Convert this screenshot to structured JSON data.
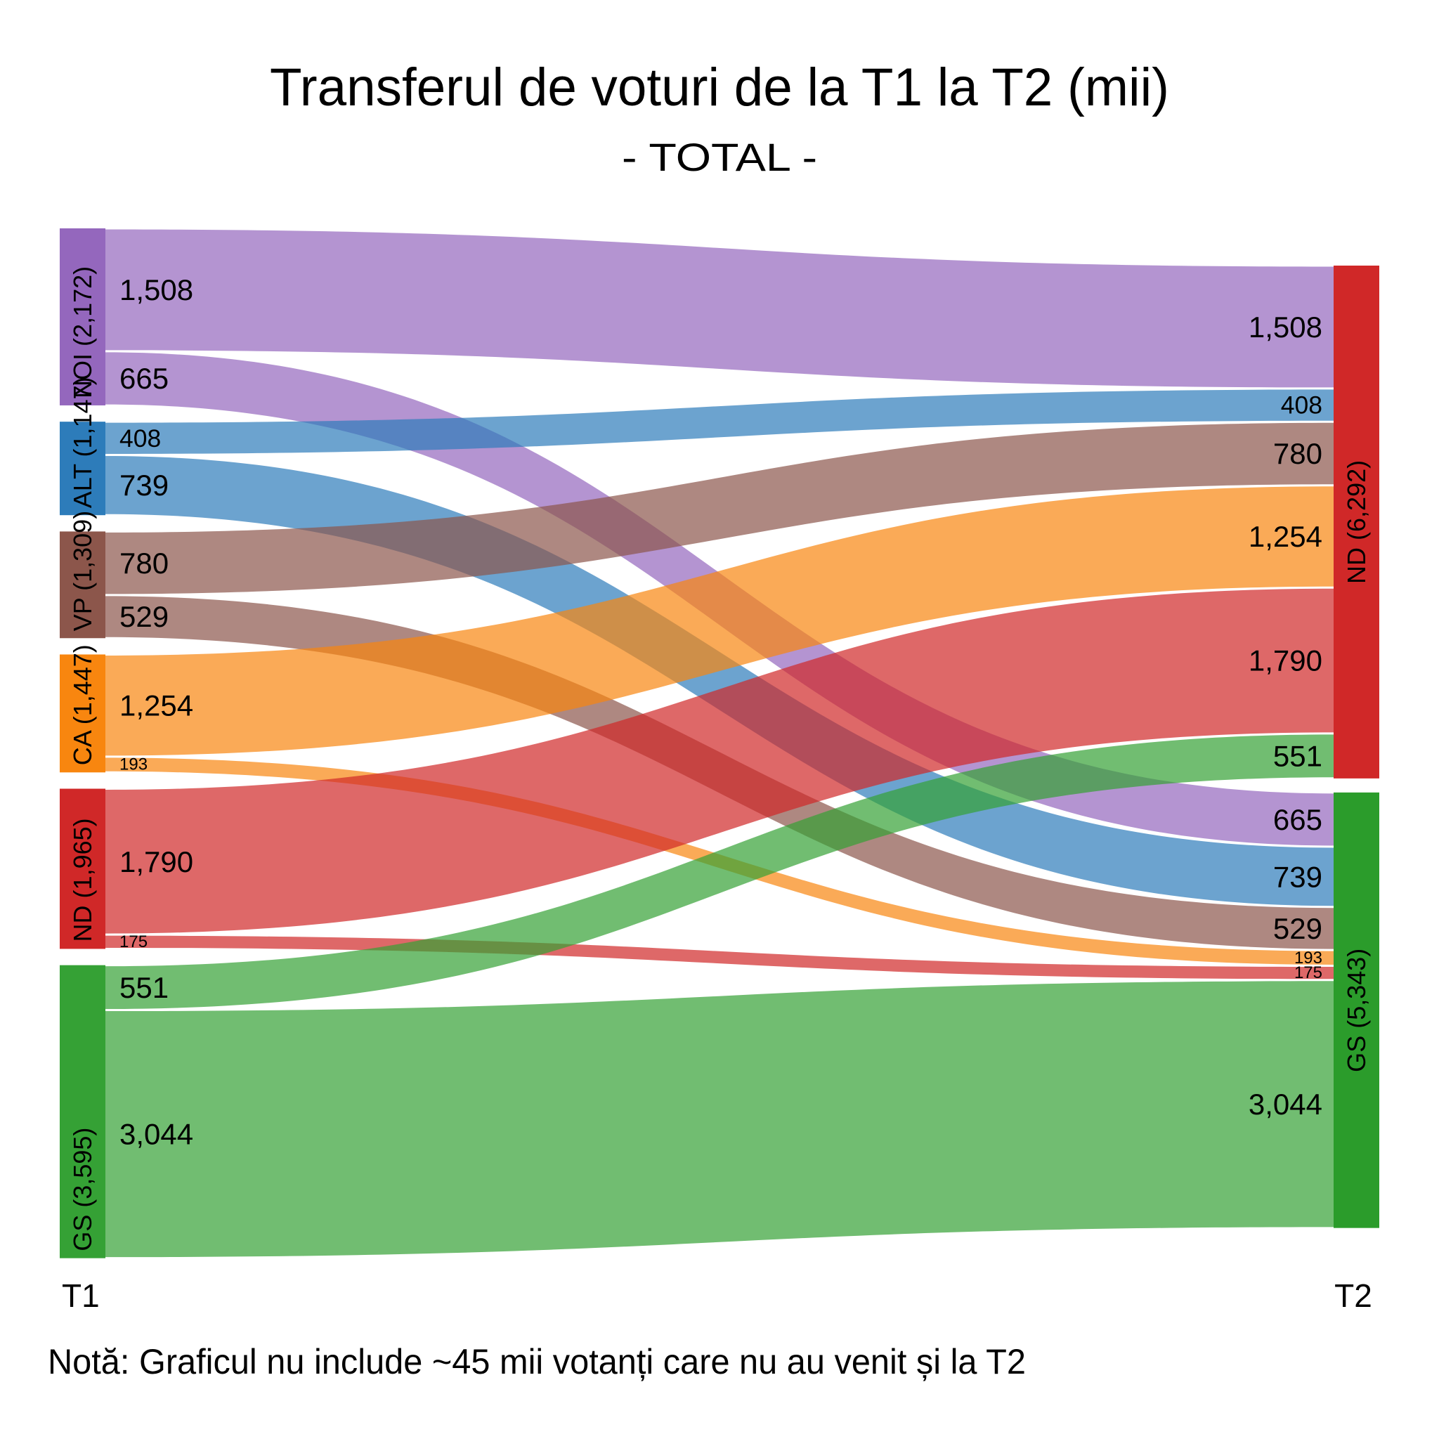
{
  "chart_data": {
    "type": "sankey",
    "title": "Transferul de voturi de la T1 la T2 (mii)",
    "subtitle": "- TOTAL -",
    "note": "Notă: Graficul nu include ~45 mii votanți care nu au venit și la T2",
    "axis": {
      "t1": "T1",
      "t2": "T2"
    },
    "unit": "mii",
    "left_nodes": [
      {
        "id": "NOI",
        "label": "NOI (2,172)",
        "total": 2172,
        "color": "#9467bd"
      },
      {
        "id": "ALT",
        "label": "ALT (1,147)",
        "total": 1147,
        "color": "#2d7cba"
      },
      {
        "id": "VP",
        "label": "VP (1,309)",
        "total": 1309,
        "color": "#8c564b"
      },
      {
        "id": "CA",
        "label": "CA (1,447)",
        "total": 1447,
        "color": "#f8860f"
      },
      {
        "id": "ND",
        "label": "ND (1,965)",
        "total": 1965,
        "color": "#d02828"
      },
      {
        "id": "GS",
        "label": "GS (3,595)",
        "total": 3595,
        "color": "#35a135"
      }
    ],
    "right_nodes": [
      {
        "id": "ND",
        "label": "ND (6,292)",
        "total": 6292,
        "color": "#d02828"
      },
      {
        "id": "GS",
        "label": "GS (5,343)",
        "total": 5343,
        "color": "#2b9c2b"
      }
    ],
    "links": [
      {
        "source": "NOI",
        "target": "ND",
        "value": 1508
      },
      {
        "source": "NOI",
        "target": "GS",
        "value": 665
      },
      {
        "source": "ALT",
        "target": "ND",
        "value": 408
      },
      {
        "source": "ALT",
        "target": "GS",
        "value": 739
      },
      {
        "source": "VP",
        "target": "ND",
        "value": 780
      },
      {
        "source": "VP",
        "target": "GS",
        "value": 529
      },
      {
        "source": "CA",
        "target": "ND",
        "value": 1254
      },
      {
        "source": "CA",
        "target": "GS",
        "value": 193
      },
      {
        "source": "ND",
        "target": "ND",
        "value": 1790
      },
      {
        "source": "ND",
        "target": "GS",
        "value": 175
      },
      {
        "source": "GS",
        "target": "ND",
        "value": 551
      },
      {
        "source": "GS",
        "target": "GS",
        "value": 3044
      }
    ]
  }
}
